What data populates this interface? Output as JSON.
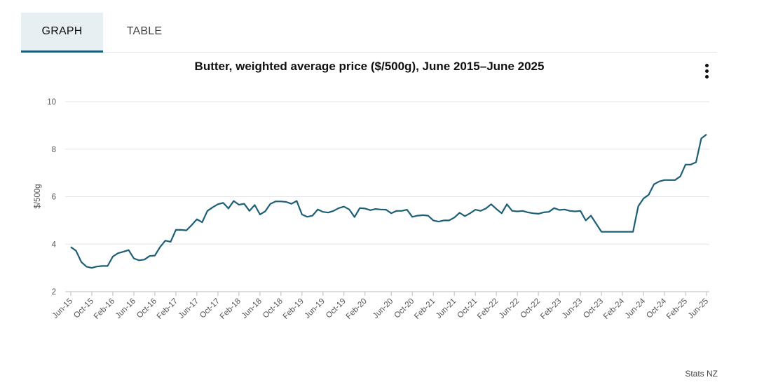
{
  "tabs": {
    "graph": "GRAPH",
    "table": "TABLE"
  },
  "menu": {
    "icon": "vertical-ellipsis-icon"
  },
  "source": "Stats NZ",
  "colors": {
    "line": "#1c5f76",
    "grid": "#e6e6e6",
    "tab_active_bg": "#e8eff2"
  },
  "chart_data": {
    "type": "line",
    "title": "Butter, weighted average price ($/500g), June 2015–June 2025",
    "ylabel": "$/500g",
    "xlabel": "",
    "ylim": [
      2,
      10
    ],
    "yticks": [
      2,
      4,
      6,
      8,
      10
    ],
    "grid": true,
    "legend": "none",
    "start": "Jun-15",
    "end": "Jun-25",
    "x_tick_labels": [
      "Jun-15",
      "Oct-15",
      "Feb-16",
      "Jun-16",
      "Oct-16",
      "Feb-17",
      "Jun-17",
      "Oct-17",
      "Feb-18",
      "Jun-18",
      "Oct-18",
      "Feb-19",
      "Jun-19",
      "Oct-19",
      "Feb-20",
      "Jun-20",
      "Oct-20",
      "Feb-21",
      "Jun-21",
      "Oct-21",
      "Feb-22",
      "Jun-22",
      "Oct-22",
      "Feb-23",
      "Jun-23",
      "Oct-23",
      "Feb-24",
      "Jun-24",
      "Oct-24",
      "Feb-25",
      "Jun-25"
    ],
    "series": [
      {
        "name": "",
        "values": [
          3.88,
          3.72,
          3.25,
          3.05,
          3.0,
          3.06,
          3.08,
          3.08,
          3.48,
          3.62,
          3.68,
          3.75,
          3.4,
          3.32,
          3.35,
          3.5,
          3.52,
          3.88,
          4.15,
          4.1,
          4.6,
          4.6,
          4.58,
          4.8,
          5.05,
          4.92,
          5.4,
          5.55,
          5.68,
          5.74,
          5.5,
          5.82,
          5.66,
          5.7,
          5.4,
          5.65,
          5.25,
          5.38,
          5.7,
          5.8,
          5.8,
          5.78,
          5.7,
          5.82,
          5.25,
          5.15,
          5.2,
          5.46,
          5.36,
          5.33,
          5.4,
          5.52,
          5.58,
          5.46,
          5.14,
          5.52,
          5.5,
          5.43,
          5.48,
          5.46,
          5.45,
          5.3,
          5.4,
          5.4,
          5.45,
          5.15,
          5.2,
          5.22,
          5.2,
          5.0,
          4.95,
          5.0,
          5.0,
          5.12,
          5.32,
          5.18,
          5.3,
          5.45,
          5.4,
          5.5,
          5.68,
          5.48,
          5.3,
          5.68,
          5.4,
          5.38,
          5.4,
          5.34,
          5.3,
          5.28,
          5.34,
          5.36,
          5.52,
          5.44,
          5.46,
          5.4,
          5.38,
          5.4,
          5.0,
          5.2,
          4.86,
          4.52,
          4.52,
          4.52,
          4.52,
          4.52,
          4.52,
          4.52,
          5.6,
          5.92,
          6.08,
          6.52,
          6.64,
          6.7,
          6.7,
          6.7,
          6.85,
          7.35,
          7.35,
          7.45,
          8.45,
          8.62
        ]
      }
    ]
  }
}
